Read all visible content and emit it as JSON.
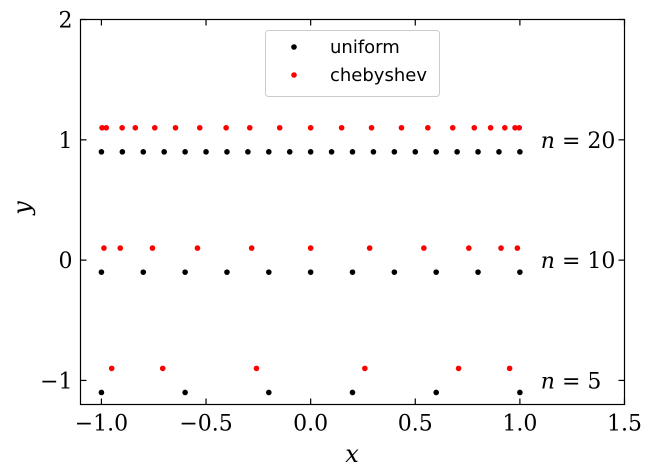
{
  "chart_data": {
    "type": "scatter",
    "xlabel": "x",
    "ylabel": "y",
    "xlim": [
      -1.1,
      1.5
    ],
    "ylim": [
      -1.2,
      2.0
    ],
    "xticks": [
      -1.0,
      -0.5,
      0.0,
      0.5,
      1.0,
      1.5
    ],
    "yticks": [
      -1,
      0,
      1,
      2
    ],
    "xtick_labels": [
      "−1.0",
      "−0.5",
      "0.0",
      "0.5",
      "1.0",
      "1.5"
    ],
    "ytick_labels": [
      "−1",
      "0",
      "1",
      "2"
    ],
    "legend_position": "top-center",
    "series": [
      {
        "name": "uniform",
        "color": "#000000",
        "points": [
          {
            "x": -1.0,
            "y": -1.1
          },
          {
            "x": -0.6,
            "y": -1.1
          },
          {
            "x": -0.2,
            "y": -1.1
          },
          {
            "x": 0.2,
            "y": -1.1
          },
          {
            "x": 0.6,
            "y": -1.1
          },
          {
            "x": 1.0,
            "y": -1.1
          },
          {
            "x": -1.0,
            "y": -0.1
          },
          {
            "x": -0.8,
            "y": -0.1
          },
          {
            "x": -0.6,
            "y": -0.1
          },
          {
            "x": -0.4,
            "y": -0.1
          },
          {
            "x": -0.2,
            "y": -0.1
          },
          {
            "x": 0.0,
            "y": -0.1
          },
          {
            "x": 0.2,
            "y": -0.1
          },
          {
            "x": 0.4,
            "y": -0.1
          },
          {
            "x": 0.6,
            "y": -0.1
          },
          {
            "x": 0.8,
            "y": -0.1
          },
          {
            "x": 1.0,
            "y": -0.1
          },
          {
            "x": -1.0,
            "y": 0.9
          },
          {
            "x": -0.9,
            "y": 0.9
          },
          {
            "x": -0.8,
            "y": 0.9
          },
          {
            "x": -0.7,
            "y": 0.9
          },
          {
            "x": -0.6,
            "y": 0.9
          },
          {
            "x": -0.5,
            "y": 0.9
          },
          {
            "x": -0.4,
            "y": 0.9
          },
          {
            "x": -0.3,
            "y": 0.9
          },
          {
            "x": -0.2,
            "y": 0.9
          },
          {
            "x": -0.1,
            "y": 0.9
          },
          {
            "x": 0.0,
            "y": 0.9
          },
          {
            "x": 0.1,
            "y": 0.9
          },
          {
            "x": 0.2,
            "y": 0.9
          },
          {
            "x": 0.3,
            "y": 0.9
          },
          {
            "x": 0.4,
            "y": 0.9
          },
          {
            "x": 0.5,
            "y": 0.9
          },
          {
            "x": 0.6,
            "y": 0.9
          },
          {
            "x": 0.7,
            "y": 0.9
          },
          {
            "x": 0.8,
            "y": 0.9
          },
          {
            "x": 0.9,
            "y": 0.9
          },
          {
            "x": 1.0,
            "y": 0.9
          }
        ]
      },
      {
        "name": "chebyshev",
        "color": "#ff0000",
        "points": [
          {
            "x": -0.951,
            "y": -0.9
          },
          {
            "x": -0.707,
            "y": -0.9
          },
          {
            "x": -0.259,
            "y": -0.9
          },
          {
            "x": 0.259,
            "y": -0.9
          },
          {
            "x": 0.707,
            "y": -0.9
          },
          {
            "x": 0.951,
            "y": -0.9
          },
          {
            "x": -0.988,
            "y": 0.1
          },
          {
            "x": -0.91,
            "y": 0.1
          },
          {
            "x": -0.756,
            "y": 0.1
          },
          {
            "x": -0.541,
            "y": 0.1
          },
          {
            "x": -0.282,
            "y": 0.1
          },
          {
            "x": 0.0,
            "y": 0.1
          },
          {
            "x": 0.282,
            "y": 0.1
          },
          {
            "x": 0.541,
            "y": 0.1
          },
          {
            "x": 0.756,
            "y": 0.1
          },
          {
            "x": 0.91,
            "y": 0.1
          },
          {
            "x": 0.988,
            "y": 0.1
          },
          {
            "x": -0.997,
            "y": 1.1
          },
          {
            "x": -0.977,
            "y": 1.1
          },
          {
            "x": -0.901,
            "y": 1.1
          },
          {
            "x": -0.838,
            "y": 1.1
          },
          {
            "x": -0.745,
            "y": 1.1
          },
          {
            "x": -0.646,
            "y": 1.1
          },
          {
            "x": -0.53,
            "y": 1.1
          },
          {
            "x": -0.404,
            "y": 1.1
          },
          {
            "x": -0.291,
            "y": 1.1
          },
          {
            "x": -0.148,
            "y": 1.1
          },
          {
            "x": 0.0,
            "y": 1.1
          },
          {
            "x": 0.148,
            "y": 1.1
          },
          {
            "x": 0.291,
            "y": 1.1
          },
          {
            "x": 0.434,
            "y": 1.1
          },
          {
            "x": 0.56,
            "y": 1.1
          },
          {
            "x": 0.679,
            "y": 1.1
          },
          {
            "x": 0.782,
            "y": 1.1
          },
          {
            "x": 0.86,
            "y": 1.1
          },
          {
            "x": 0.928,
            "y": 1.1
          },
          {
            "x": 0.977,
            "y": 1.1
          },
          {
            "x": 0.997,
            "y": 1.1
          }
        ]
      }
    ],
    "annotations": [
      {
        "text": "n = 20",
        "x": 1.1,
        "y": 1.0
      },
      {
        "text": "n = 10",
        "x": 1.1,
        "y": 0.0
      },
      {
        "text": "n = 5",
        "x": 1.1,
        "y": -1.0
      }
    ]
  }
}
